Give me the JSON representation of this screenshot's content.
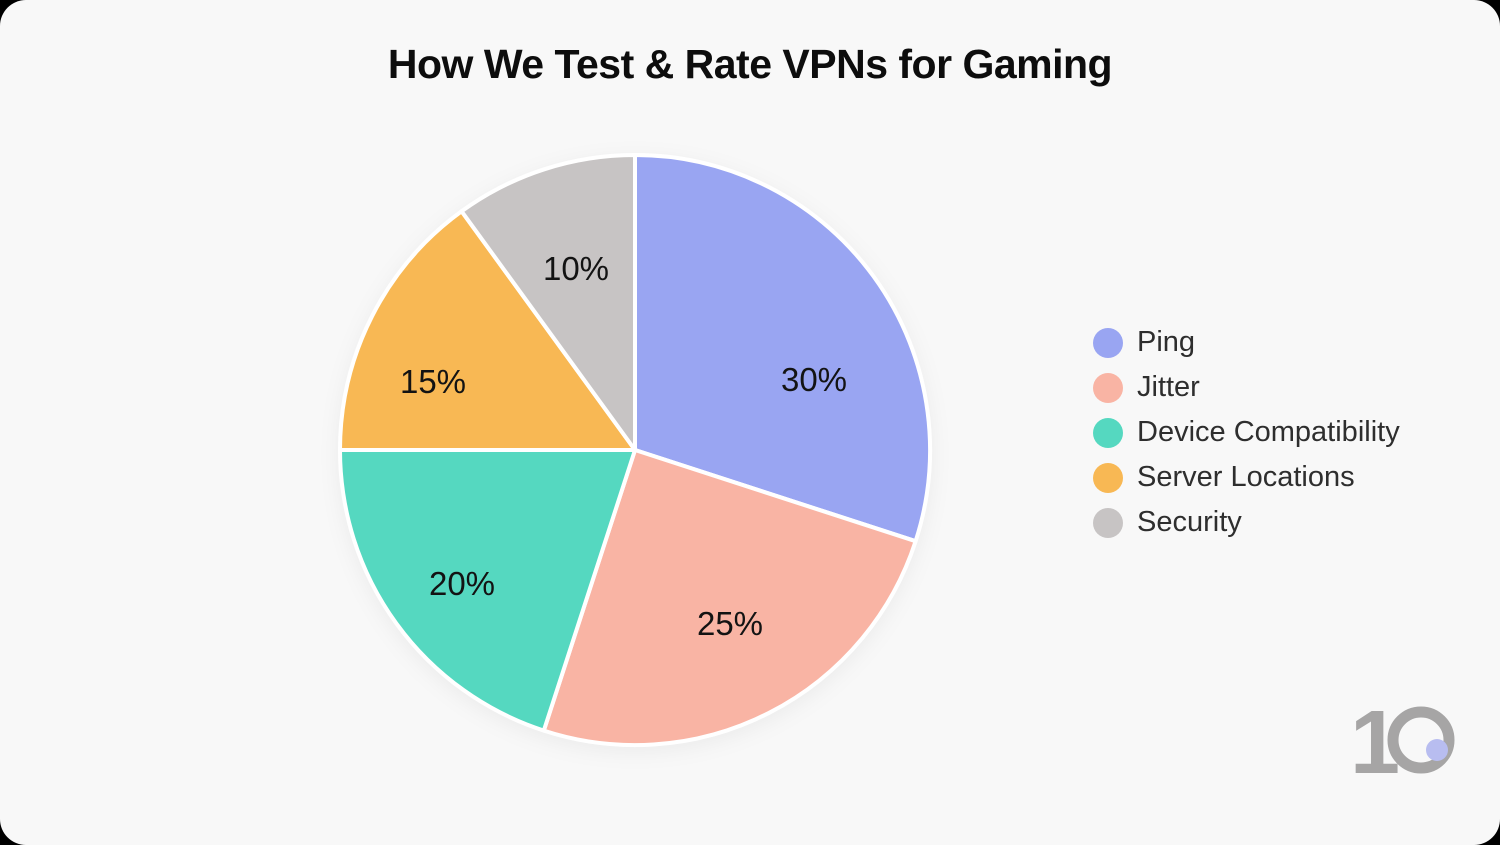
{
  "title": "How We Test & Rate VPNs for Gaming",
  "chart_data": {
    "type": "pie",
    "title": "How We Test & Rate VPNs for Gaming",
    "direction": "clockwise",
    "start_angle_deg": 0,
    "legend_position": "right",
    "slice_border_color": "#ffffff",
    "slices": [
      {
        "label": "Ping",
        "value": 30,
        "value_label": "30%",
        "color": "#99a5f2"
      },
      {
        "label": "Jitter",
        "value": 25,
        "value_label": "25%",
        "color": "#f9b4a4"
      },
      {
        "label": "Device Compatibility",
        "value": 20,
        "value_label": "20%",
        "color": "#55d8c0"
      },
      {
        "label": "Server Locations",
        "value": 15,
        "value_label": "15%",
        "color": "#f8b854"
      },
      {
        "label": "Security",
        "value": 10,
        "value_label": "10%",
        "color": "#c7c4c4"
      }
    ]
  },
  "logo": {
    "visible_text": "10"
  },
  "colors": {
    "page_bg": "#000000",
    "card_bg": "#f8f8f8",
    "title_text": "#0d0d0d",
    "legend_text": "#2e2e2e",
    "slice_label": "#131313",
    "slice_border": "#ffffff",
    "logo_mark": "#a6a5a5",
    "logo_dot": "#b8bdf0"
  }
}
